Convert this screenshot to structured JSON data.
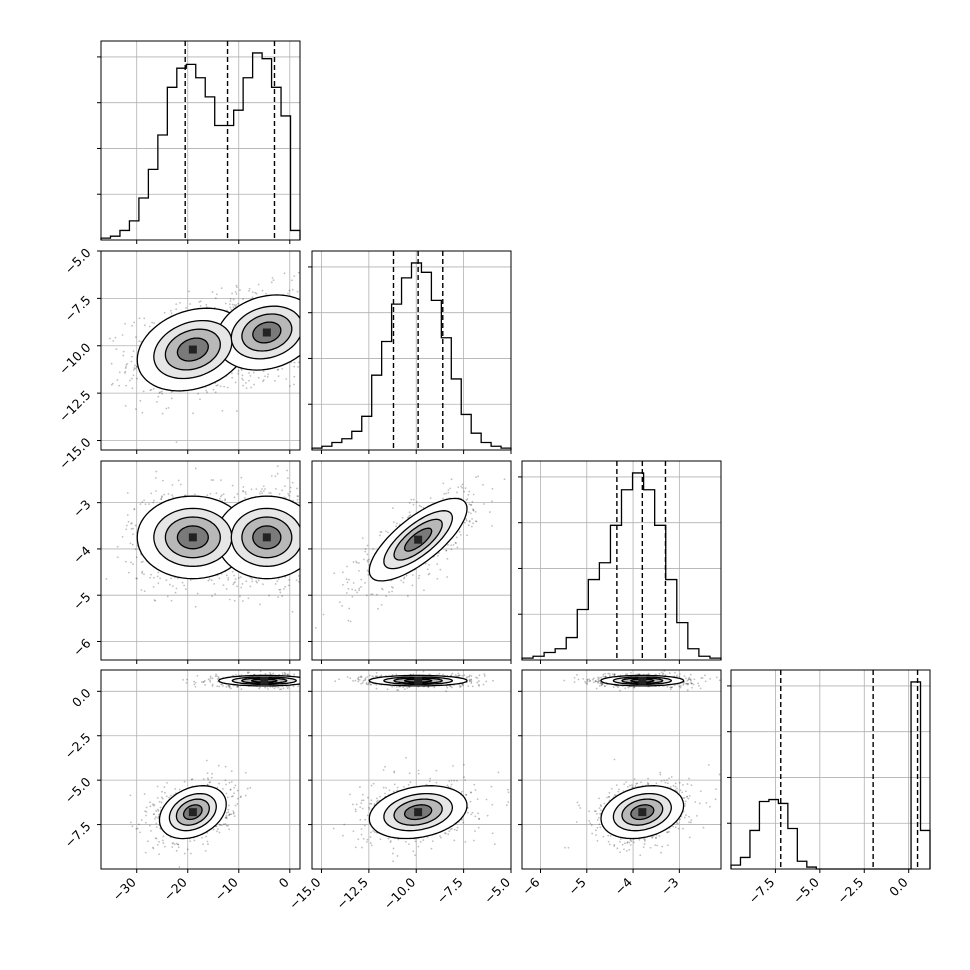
{
  "chart_data": {
    "type": "corner",
    "grid": true,
    "params": [
      {
        "range": [
          -37,
          2
        ],
        "ticks": [
          -30,
          -20,
          -10,
          0
        ],
        "tick_labels": [
          "−30",
          "−20",
          "−10",
          "0"
        ],
        "quantiles": [
          -20.5,
          -12.2,
          -3.0
        ]
      },
      {
        "range": [
          -15.5,
          -5.0
        ],
        "ticks": [
          -15.0,
          -12.5,
          -10.0,
          -7.5,
          -5.0
        ],
        "tick_labels": [
          "−15.0",
          "−12.5",
          "−10.0",
          "−7.5",
          "−5.0"
        ],
        "quantiles": [
          -11.2,
          -9.9,
          -8.6
        ]
      },
      {
        "range": [
          -6.4,
          -2.1
        ],
        "ticks": [
          -6,
          -5,
          -4,
          -3
        ],
        "tick_labels": [
          "−6",
          "−5",
          "−4",
          "−3"
        ],
        "quantiles": [
          -4.35,
          -3.8,
          -3.3
        ]
      },
      {
        "range": [
          -10,
          1.2
        ],
        "ticks": [
          -7.5,
          -5.0,
          -2.5,
          0.0
        ],
        "tick_labels": [
          "−7.5",
          "−5.0",
          "−2.5",
          "0.0"
        ],
        "quantiles": [
          -7.2,
          -2.0,
          0.5
        ]
      }
    ],
    "histograms": [
      {
        "bin_edges_range": [
          -37,
          2
        ],
        "counts": [
          1,
          2,
          5,
          10,
          22,
          37,
          55,
          80,
          90,
          92,
          85,
          75,
          60,
          60,
          68,
          85,
          98,
          95,
          80,
          65,
          5
        ]
      },
      {
        "bin_edges_range": [
          -15.5,
          -5.0
        ],
        "counts": [
          1,
          2,
          4,
          6,
          10,
          18,
          40,
          58,
          78,
          92,
          100,
          95,
          80,
          60,
          38,
          19,
          9,
          4,
          2,
          1
        ]
      },
      {
        "bin_edges_range": [
          -6.4,
          -2.1
        ],
        "counts": [
          1,
          2,
          4,
          6,
          12,
          27,
          43,
          52,
          72,
          91,
          100,
          91,
          72,
          43,
          20,
          6,
          2,
          1
        ]
      },
      {
        "bin_edges_range": [
          -10,
          1.2
        ],
        "counts": [
          2,
          6,
          20,
          35,
          36,
          34,
          21,
          4,
          1,
          0,
          0,
          0,
          0,
          0,
          0,
          0,
          0,
          0,
          0,
          97,
          20
        ]
      }
    ],
    "blobs": [
      {
        "row": 1,
        "col": 0,
        "components": [
          {
            "mx": -19,
            "my": -10.2,
            "sx": 5.5,
            "sy": 1.1,
            "rho": 0.25
          },
          {
            "mx": -4.5,
            "my": -9.3,
            "sx": 5.0,
            "sy": 1.0,
            "rho": 0.2
          }
        ]
      },
      {
        "row": 2,
        "col": 0,
        "components": [
          {
            "mx": -19,
            "my": -3.75,
            "sx": 5.5,
            "sy": 0.45,
            "rho": 0.0
          },
          {
            "mx": -4.5,
            "my": -3.75,
            "sx": 5.0,
            "sy": 0.45,
            "rho": 0.0
          }
        ]
      },
      {
        "row": 2,
        "col": 1,
        "components": [
          {
            "mx": -9.9,
            "my": -3.8,
            "sx": 1.3,
            "sy": 0.45,
            "rho": 0.75
          }
        ]
      },
      {
        "row": 3,
        "col": 0,
        "components": [
          {
            "mx": -5,
            "my": 0.6,
            "sx": 4.5,
            "sy": 0.15,
            "rho": 0.0
          },
          {
            "mx": -19,
            "my": -6.8,
            "sx": 3.3,
            "sy": 0.75,
            "rho": 0.3
          }
        ]
      },
      {
        "row": 3,
        "col": 1,
        "components": [
          {
            "mx": -9.9,
            "my": 0.6,
            "sx": 1.3,
            "sy": 0.15,
            "rho": 0.0
          },
          {
            "mx": -9.9,
            "my": -6.8,
            "sx": 1.3,
            "sy": 0.75,
            "rho": 0.25
          }
        ]
      },
      {
        "row": 3,
        "col": 2,
        "components": [
          {
            "mx": -3.8,
            "my": 0.6,
            "sx": 0.45,
            "sy": 0.15,
            "rho": 0.0
          },
          {
            "mx": -3.8,
            "my": -6.8,
            "sx": 0.45,
            "sy": 0.75,
            "rho": 0.25
          }
        ]
      }
    ]
  }
}
